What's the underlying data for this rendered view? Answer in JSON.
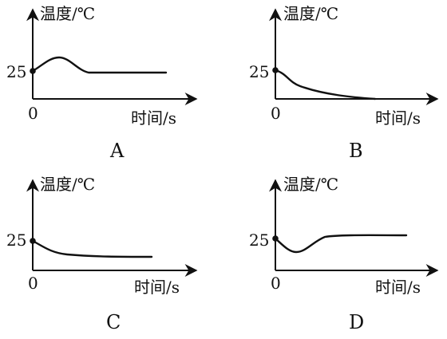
{
  "axis_labels": {
    "y_label": "温度/℃",
    "x_label": "时间/s",
    "y_tick": "25",
    "origin": "0"
  },
  "panels": [
    {
      "label": "A",
      "shape": "rise-then-level"
    },
    {
      "label": "B",
      "shape": "drop-to-axis"
    },
    {
      "label": "C",
      "shape": "drop-then-level"
    },
    {
      "label": "D",
      "shape": "dip-then-level"
    }
  ]
}
